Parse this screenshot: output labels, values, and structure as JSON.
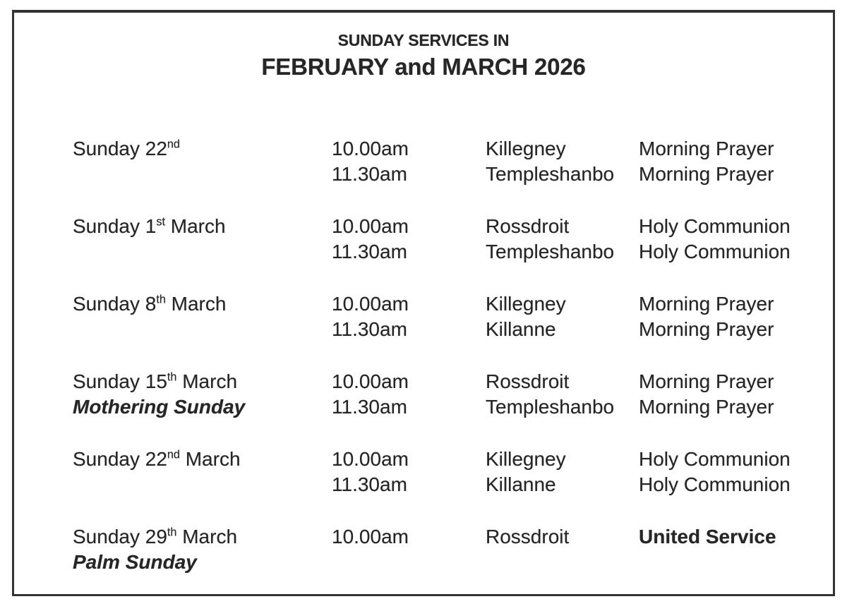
{
  "title": {
    "line1": "SUNDAY SERVICES IN",
    "line2": "FEBRUARY and MARCH 2026"
  },
  "colors": {
    "text": "#262626",
    "border": "#333333",
    "background": "#ffffff"
  },
  "schedule": {
    "rows": [
      {
        "date_prefix": "Sunday 22",
        "date_ordinal": "nd",
        "date_rest": "",
        "note": "",
        "line1": {
          "time": "10.00am",
          "church": "Killegney",
          "service": "Morning Prayer"
        },
        "line2": {
          "time": "11.30am",
          "church": "Templeshanbo",
          "service": "Morning Prayer"
        }
      },
      {
        "date_prefix": "Sunday 1",
        "date_ordinal": "st",
        "date_rest": " March",
        "note": "",
        "line1": {
          "time": "10.00am",
          "church": "Rossdroit",
          "service": "Holy Communion"
        },
        "line2": {
          "time": "11.30am",
          "church": "Templeshanbo",
          "service": "Holy Communion"
        }
      },
      {
        "date_prefix": "Sunday 8",
        "date_ordinal": "th",
        "date_rest": " March",
        "note": "",
        "line1": {
          "time": "10.00am",
          "church": "Killegney",
          "service": "Morning Prayer"
        },
        "line2": {
          "time": "11.30am",
          "church": "Killanne",
          "service": "Morning Prayer"
        }
      },
      {
        "date_prefix": "Sunday 15",
        "date_ordinal": "th",
        "date_rest": " March",
        "note": "Mothering Sunday",
        "line1": {
          "time": "10.00am",
          "church": "Rossdroit",
          "service": "Morning Prayer"
        },
        "line2": {
          "time": "11.30am",
          "church": "Templeshanbo",
          "service": "Morning Prayer"
        }
      },
      {
        "date_prefix": "Sunday 22",
        "date_ordinal": "nd",
        "date_rest": " March",
        "note": "",
        "line1": {
          "time": "10.00am",
          "church": "Killegney",
          "service": "Holy Communion"
        },
        "line2": {
          "time": "11.30am",
          "church": "Killanne",
          "service": "Holy Communion"
        }
      },
      {
        "date_prefix": "Sunday 29",
        "date_ordinal": "th",
        "date_rest": " March",
        "note": "Palm Sunday",
        "line1": {
          "time": "10.00am",
          "church": "Rossdroit",
          "service": "United Service"
        },
        "line2": {
          "time": "",
          "church": "",
          "service": ""
        }
      }
    ]
  }
}
